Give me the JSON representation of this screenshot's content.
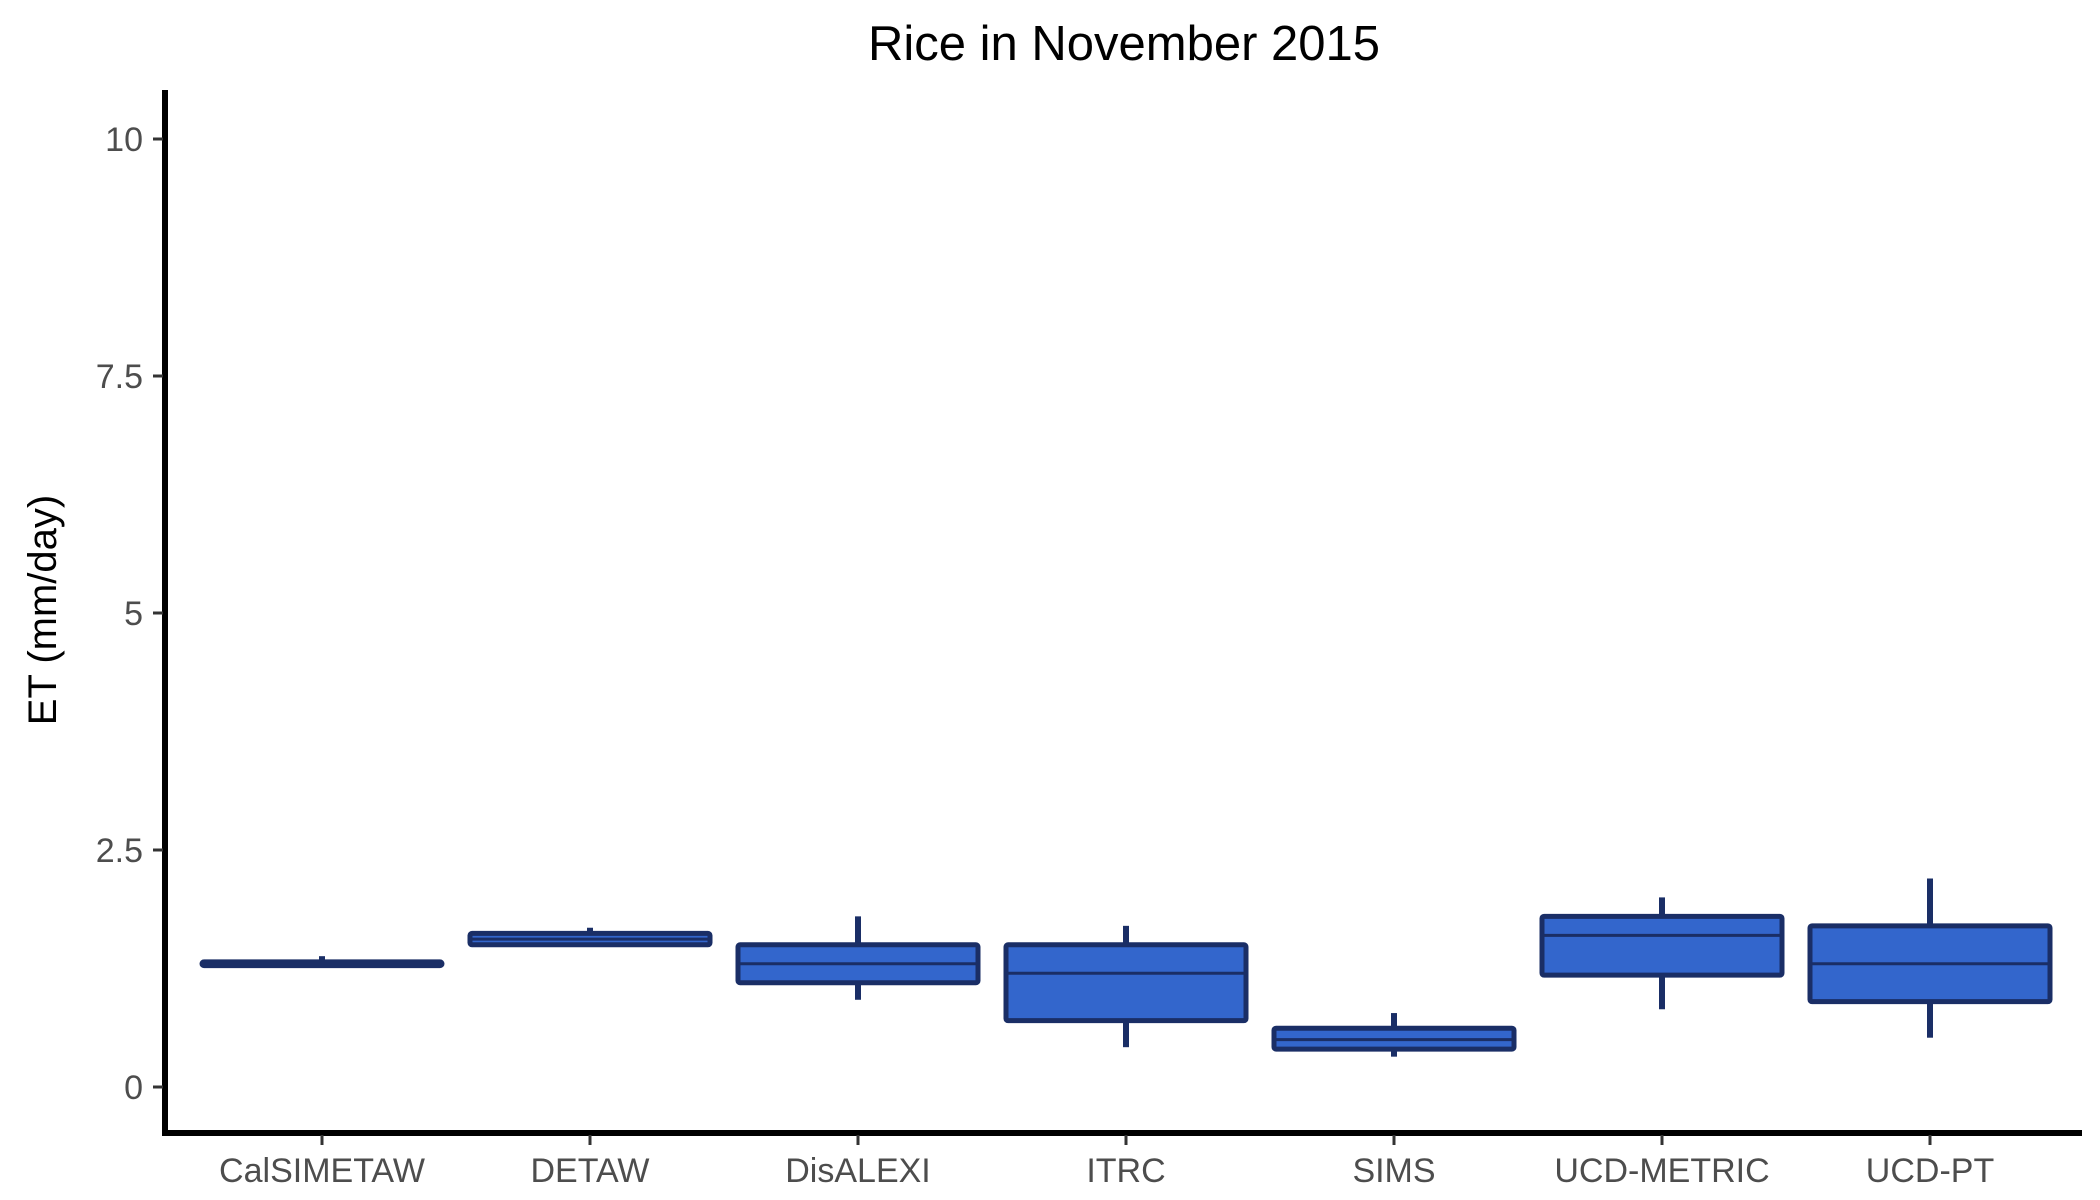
{
  "chart_data": {
    "type": "boxplot",
    "title": "Rice in November 2015",
    "xlabel": "",
    "ylabel": "ET (mm/day)",
    "ylim": [
      -0.5,
      10.5
    ],
    "yticks": [
      0,
      2.5,
      5,
      7.5,
      10
    ],
    "ytick_labels": [
      "0",
      "2.5",
      "5",
      "7.5",
      "10"
    ],
    "grid": false,
    "legend": "none",
    "colors": {
      "box_fill": "#3366CC",
      "box_stroke": "#1A2E66",
      "axis": "#000000"
    },
    "categories": [
      "CalSIMETAW",
      "DETAW",
      "DisALEXI",
      "ITRC",
      "SIMS",
      "UCD-METRIC",
      "UCD-PT"
    ],
    "boxes": [
      {
        "category": "CalSIMETAW",
        "min": 1.28,
        "q1": 1.28,
        "median": 1.3,
        "q3": 1.32,
        "max": 1.38
      },
      {
        "category": "DETAW",
        "min": 1.5,
        "q1": 1.5,
        "median": 1.56,
        "q3": 1.62,
        "max": 1.68
      },
      {
        "category": "DisALEXI",
        "min": 0.92,
        "q1": 1.1,
        "median": 1.3,
        "q3": 1.5,
        "max": 1.8
      },
      {
        "category": "ITRC",
        "min": 0.42,
        "q1": 0.7,
        "median": 1.2,
        "q3": 1.5,
        "max": 1.7
      },
      {
        "category": "SIMS",
        "min": 0.32,
        "q1": 0.4,
        "median": 0.5,
        "q3": 0.62,
        "max": 0.78
      },
      {
        "category": "UCD-METRIC",
        "min": 0.82,
        "q1": 1.18,
        "median": 1.6,
        "q3": 1.8,
        "max": 2.0
      },
      {
        "category": "UCD-PT",
        "min": 0.52,
        "q1": 0.9,
        "median": 1.3,
        "q3": 1.7,
        "max": 2.2
      }
    ]
  }
}
